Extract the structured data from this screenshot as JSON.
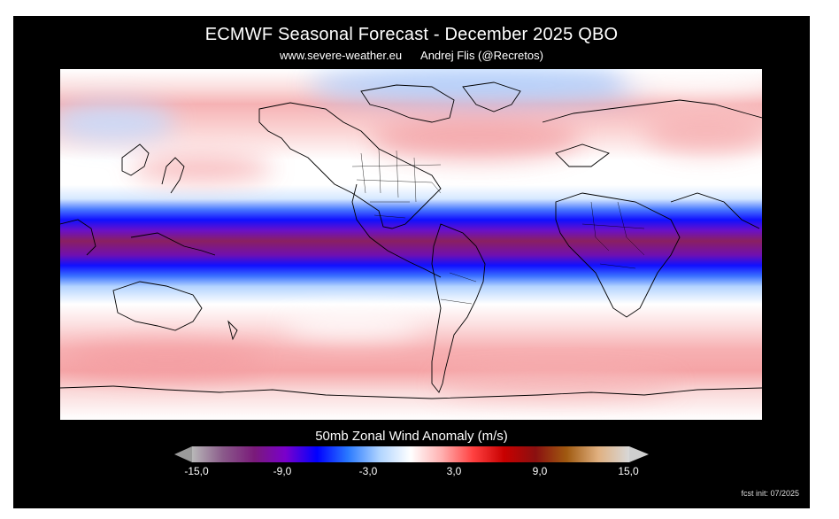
{
  "title": "ECMWF Seasonal Forecast - December 2025 QBO",
  "subtitle_site": "www.severe-weather.eu",
  "subtitle_author": "Andrej Flis (@Recretos)",
  "colorbar": {
    "label": "50mb Zonal Wind Anomaly (m/s)",
    "ticks": [
      "-15,0",
      "-9,0",
      "-3,0",
      "3,0",
      "9,0",
      "15,0"
    ],
    "colors": [
      "#b8b8b8",
      "#8a5a8a",
      "#7a1a7a",
      "#7a00cc",
      "#0000ff",
      "#2a7aff",
      "#b0d4ff",
      "#ffffff",
      "#ffb0b0",
      "#ff4040",
      "#c80000",
      "#8a1010",
      "#a05a10",
      "#e0b080",
      "#d8d8d8"
    ]
  },
  "map": {
    "projection": "global equirectangular, centered ~100°W",
    "colors": {
      "pink": "#f6a9ab",
      "lightblue": "#a8d0ff",
      "blue": "#1010ff",
      "purple": "#7a10b0",
      "maroon": "#8a1a55"
    }
  },
  "footer": "fcst init: 07/2025"
}
